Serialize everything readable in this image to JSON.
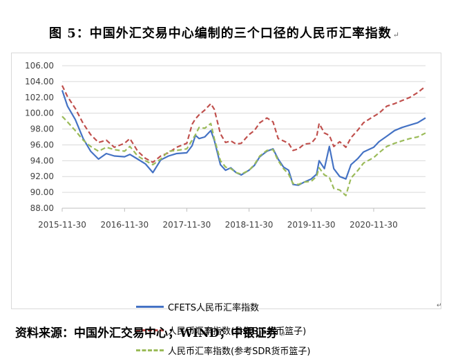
{
  "title": "图 5：中国外汇交易中心编制的三个口径的人民币汇率指数",
  "paragraph_mark": "↵",
  "source_note": "资料来源：中国外汇交易中心；WIND；中银证券",
  "chart_data": {
    "type": "line",
    "ylim": [
      88,
      106
    ],
    "yticks": [
      "106.00",
      "104.00",
      "102.00",
      "100.00",
      "98.00",
      "96.00",
      "94.00",
      "92.00",
      "90.00",
      "88.00"
    ],
    "yticks_values": [
      106,
      104,
      102,
      100,
      98,
      96,
      94,
      92,
      90,
      88
    ],
    "xticks": [
      "2015-11-30",
      "2016-11-30",
      "2017-11-30",
      "2018-11-30",
      "2019-11-30",
      "2020-11-30"
    ],
    "xrange": [
      "2015-11-30",
      "2021-09-30"
    ],
    "grid": "horizontal",
    "legend_position": "bottom",
    "series": [
      {
        "name": "CFETS人民币汇率指数",
        "color": "#4472c4",
        "dash": "solid",
        "points": [
          [
            "2015-11-30",
            102.9
          ],
          [
            "2015-12-31",
            100.9
          ],
          [
            "2016-02-15",
            99.2
          ],
          [
            "2016-04-01",
            96.8
          ],
          [
            "2016-05-15",
            95.2
          ],
          [
            "2016-06-30",
            94.2
          ],
          [
            "2016-08-15",
            94.9
          ],
          [
            "2016-10-01",
            94.6
          ],
          [
            "2016-11-30",
            94.5
          ],
          [
            "2016-12-31",
            94.8
          ],
          [
            "2017-02-15",
            94.2
          ],
          [
            "2017-04-01",
            93.6
          ],
          [
            "2017-05-15",
            92.5
          ],
          [
            "2017-06-30",
            94.1
          ],
          [
            "2017-08-15",
            94.6
          ],
          [
            "2017-10-01",
            94.9
          ],
          [
            "2017-11-30",
            95.0
          ],
          [
            "2017-12-31",
            95.9
          ],
          [
            "2018-01-20",
            97.2
          ],
          [
            "2018-02-10",
            96.8
          ],
          [
            "2018-03-15",
            97.0
          ],
          [
            "2018-04-20",
            97.8
          ],
          [
            "2018-05-10",
            96.6
          ],
          [
            "2018-06-15",
            93.5
          ],
          [
            "2018-07-15",
            92.8
          ],
          [
            "2018-08-15",
            93.1
          ],
          [
            "2018-09-15",
            92.5
          ],
          [
            "2018-10-15",
            92.2
          ],
          [
            "2018-11-30",
            92.8
          ],
          [
            "2018-12-31",
            93.4
          ],
          [
            "2019-02-01",
            94.5
          ],
          [
            "2019-03-15",
            95.2
          ],
          [
            "2019-04-20",
            95.5
          ],
          [
            "2019-05-20",
            94.2
          ],
          [
            "2019-06-20",
            93.2
          ],
          [
            "2019-07-20",
            92.8
          ],
          [
            "2019-08-15",
            91.0
          ],
          [
            "2019-09-15",
            90.9
          ],
          [
            "2019-10-20",
            91.3
          ],
          [
            "2019-11-30",
            91.7
          ],
          [
            "2019-12-31",
            92.3
          ],
          [
            "2020-01-15",
            94.0
          ],
          [
            "2020-02-15",
            93.0
          ],
          [
            "2020-03-15",
            95.8
          ],
          [
            "2020-04-10",
            93.0
          ],
          [
            "2020-05-15",
            92.0
          ],
          [
            "2020-06-20",
            91.7
          ],
          [
            "2020-07-20",
            93.5
          ],
          [
            "2020-08-30",
            94.3
          ],
          [
            "2020-10-01",
            95.1
          ],
          [
            "2020-11-30",
            95.7
          ],
          [
            "2020-12-31",
            96.4
          ],
          [
            "2021-02-15",
            97.1
          ],
          [
            "2021-04-01",
            97.8
          ],
          [
            "2021-05-15",
            98.2
          ],
          [
            "2021-06-30",
            98.5
          ],
          [
            "2021-08-15",
            98.8
          ],
          [
            "2021-09-30",
            99.4
          ]
        ]
      },
      {
        "name": "人民币汇率指数(参考BIS货币篮子)",
        "color": "#c0504d",
        "dash": "dashed",
        "points": [
          [
            "2015-11-30",
            103.5
          ],
          [
            "2015-12-31",
            102.1
          ],
          [
            "2016-02-15",
            100.6
          ],
          [
            "2016-04-01",
            98.7
          ],
          [
            "2016-05-15",
            97.3
          ],
          [
            "2016-06-30",
            96.3
          ],
          [
            "2016-08-15",
            96.6
          ],
          [
            "2016-10-01",
            95.7
          ],
          [
            "2016-11-30",
            96.2
          ],
          [
            "2016-12-31",
            96.8
          ],
          [
            "2017-02-15",
            95.2
          ],
          [
            "2017-04-01",
            94.3
          ],
          [
            "2017-05-15",
            93.8
          ],
          [
            "2017-06-30",
            94.6
          ],
          [
            "2017-08-15",
            95.0
          ],
          [
            "2017-10-01",
            95.7
          ],
          [
            "2017-11-30",
            96.2
          ],
          [
            "2017-12-31",
            98.6
          ],
          [
            "2018-01-20",
            99.3
          ],
          [
            "2018-02-10",
            99.8
          ],
          [
            "2018-03-15",
            100.4
          ],
          [
            "2018-04-20",
            101.2
          ],
          [
            "2018-05-10",
            100.5
          ],
          [
            "2018-06-15",
            97.4
          ],
          [
            "2018-07-15",
            96.3
          ],
          [
            "2018-08-15",
            96.5
          ],
          [
            "2018-09-15",
            96.1
          ],
          [
            "2018-10-15",
            96.2
          ],
          [
            "2018-11-30",
            97.3
          ],
          [
            "2018-12-31",
            97.8
          ],
          [
            "2019-02-01",
            98.8
          ],
          [
            "2019-03-15",
            99.4
          ],
          [
            "2019-04-20",
            98.9
          ],
          [
            "2019-05-20",
            96.8
          ],
          [
            "2019-06-20",
            96.5
          ],
          [
            "2019-07-20",
            96.2
          ],
          [
            "2019-08-15",
            95.3
          ],
          [
            "2019-09-15",
            95.5
          ],
          [
            "2019-10-20",
            96.1
          ],
          [
            "2019-11-30",
            96.2
          ],
          [
            "2019-12-31",
            97.0
          ],
          [
            "2020-01-15",
            98.7
          ],
          [
            "2020-02-15",
            97.5
          ],
          [
            "2020-03-15",
            97.2
          ],
          [
            "2020-04-10",
            95.8
          ],
          [
            "2020-05-15",
            96.4
          ],
          [
            "2020-06-20",
            95.7
          ],
          [
            "2020-07-20",
            96.9
          ],
          [
            "2020-08-30",
            97.9
          ],
          [
            "2020-10-01",
            98.8
          ],
          [
            "2020-11-30",
            99.6
          ],
          [
            "2020-12-31",
            100.0
          ],
          [
            "2021-02-15",
            100.9
          ],
          [
            "2021-04-01",
            101.2
          ],
          [
            "2021-05-15",
            101.6
          ],
          [
            "2021-06-30",
            102.0
          ],
          [
            "2021-08-15",
            102.6
          ],
          [
            "2021-09-30",
            103.4
          ]
        ]
      },
      {
        "name": "人民币汇率指数(参考SDR货币篮子)",
        "color": "#9bbb59",
        "dash": "dashed",
        "points": [
          [
            "2015-11-30",
            99.6
          ],
          [
            "2015-12-31",
            98.9
          ],
          [
            "2016-02-15",
            97.8
          ],
          [
            "2016-04-01",
            96.6
          ],
          [
            "2016-05-15",
            95.8
          ],
          [
            "2016-06-30",
            95.2
          ],
          [
            "2016-08-15",
            95.7
          ],
          [
            "2016-10-01",
            95.4
          ],
          [
            "2016-11-30",
            95.2
          ],
          [
            "2016-12-31",
            95.8
          ],
          [
            "2017-02-15",
            94.6
          ],
          [
            "2017-04-01",
            94.0
          ],
          [
            "2017-05-15",
            93.5
          ],
          [
            "2017-06-30",
            94.2
          ],
          [
            "2017-08-15",
            95.2
          ],
          [
            "2017-10-01",
            95.3
          ],
          [
            "2017-11-30",
            95.5
          ],
          [
            "2017-12-31",
            96.6
          ],
          [
            "2018-01-20",
            97.3
          ],
          [
            "2018-02-10",
            98.2
          ],
          [
            "2018-03-15",
            98.1
          ],
          [
            "2018-04-20",
            98.7
          ],
          [
            "2018-05-10",
            96.8
          ],
          [
            "2018-06-15",
            94.0
          ],
          [
            "2018-07-15",
            93.2
          ],
          [
            "2018-08-15",
            93.0
          ],
          [
            "2018-09-15",
            92.5
          ],
          [
            "2018-10-15",
            92.3
          ],
          [
            "2018-11-30",
            92.8
          ],
          [
            "2018-12-31",
            93.5
          ],
          [
            "2019-02-01",
            94.6
          ],
          [
            "2019-03-15",
            95.3
          ],
          [
            "2019-04-20",
            95.4
          ],
          [
            "2019-05-20",
            94.0
          ],
          [
            "2019-06-20",
            93.0
          ],
          [
            "2019-07-20",
            92.3
          ],
          [
            "2019-08-15",
            91.1
          ],
          [
            "2019-09-15",
            91.0
          ],
          [
            "2019-10-20",
            91.3
          ],
          [
            "2019-11-30",
            91.4
          ],
          [
            "2019-12-31",
            92.0
          ],
          [
            "2020-01-15",
            93.1
          ],
          [
            "2020-02-15",
            92.2
          ],
          [
            "2020-03-15",
            91.9
          ],
          [
            "2020-04-10",
            90.5
          ],
          [
            "2020-05-15",
            90.3
          ],
          [
            "2020-06-20",
            89.6
          ],
          [
            "2020-07-20",
            91.8
          ],
          [
            "2020-08-30",
            92.8
          ],
          [
            "2020-10-01",
            93.7
          ],
          [
            "2020-11-30",
            94.4
          ],
          [
            "2020-12-31",
            95.0
          ],
          [
            "2021-02-15",
            95.8
          ],
          [
            "2021-04-01",
            96.2
          ],
          [
            "2021-05-15",
            96.5
          ],
          [
            "2021-06-30",
            96.8
          ],
          [
            "2021-08-15",
            97.0
          ],
          [
            "2021-09-30",
            97.5
          ]
        ]
      }
    ]
  }
}
